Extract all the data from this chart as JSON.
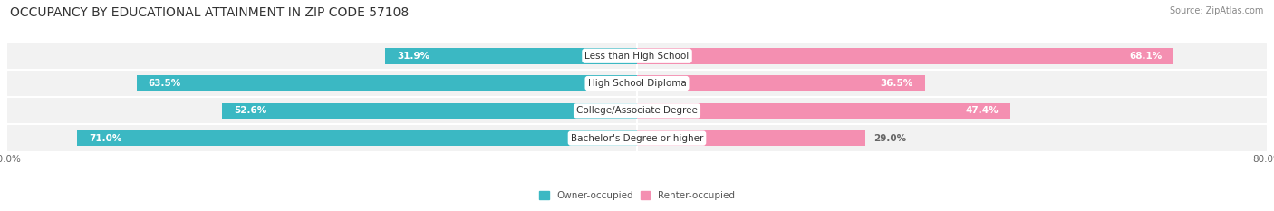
{
  "title": "OCCUPANCY BY EDUCATIONAL ATTAINMENT IN ZIP CODE 57108",
  "source": "Source: ZipAtlas.com",
  "categories": [
    "Less than High School",
    "High School Diploma",
    "College/Associate Degree",
    "Bachelor's Degree or higher"
  ],
  "owner_values": [
    31.9,
    63.5,
    52.6,
    71.0
  ],
  "renter_values": [
    68.1,
    36.5,
    47.4,
    29.0
  ],
  "owner_color": "#3bb8c3",
  "renter_color": "#f48fb1",
  "axis_min": -80.0,
  "axis_max": 80.0,
  "bar_height": 0.58,
  "title_fontsize": 10,
  "label_fontsize": 7.5,
  "tick_fontsize": 7.5
}
